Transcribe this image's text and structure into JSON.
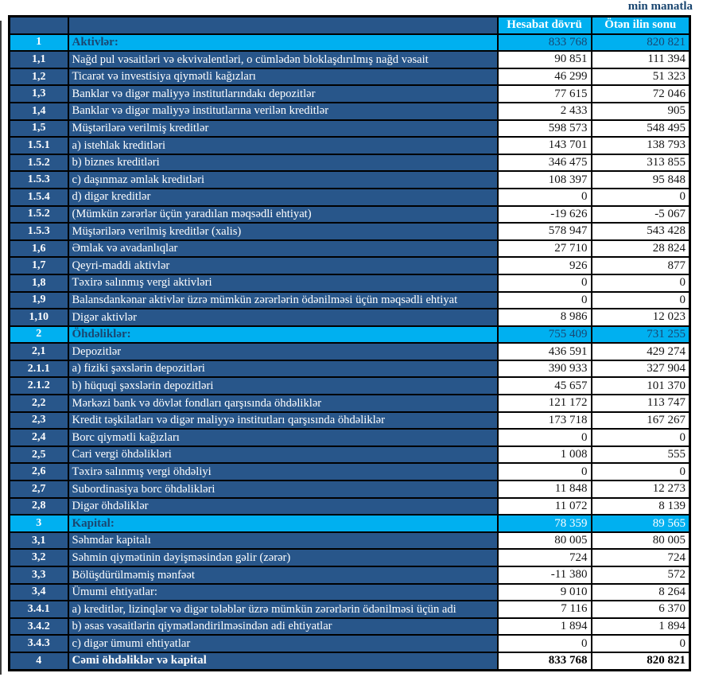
{
  "page": {
    "unit_note": "min manatla"
  },
  "colors": {
    "navy": "#28568A",
    "cyan": "#00B0F0",
    "section_text": "#1A4670",
    "value_text": "#141414",
    "border": "#000000"
  },
  "table": {
    "column_headers": {
      "current_period": "Hesabat dövrü",
      "previous_period": "Ötən ilin sonu"
    },
    "rows": [
      {
        "no": "1",
        "label": "Aktivlər:",
        "v1": "833 768",
        "v2": "820 821",
        "type": "section",
        "value_style": "dark"
      },
      {
        "no": "1,1",
        "label": "Nağd pul vəsaitləri və  ekvivalentləri, o cümlədən bloklaşdırılmış nağd vəsait",
        "v1": "90 851",
        "v2": "111 394",
        "type": "item"
      },
      {
        "no": "1,2",
        "label": "Ticarət və investisiya qiymətli kağızları",
        "v1": "46 299",
        "v2": "51 323",
        "type": "item"
      },
      {
        "no": "1,3",
        "label": "Banklar və digər maliyyə institutlarındakı depozitlər",
        "v1": "77 615",
        "v2": "72 046",
        "type": "item"
      },
      {
        "no": "1,4",
        "label": "Banklar və digər maliyyə institutlarına verilən kreditlər",
        "v1": "2 433",
        "v2": "905",
        "type": "item"
      },
      {
        "no": "1,5",
        "label": "Müştərilərə verilmiş kreditlər",
        "v1": "598 573",
        "v2": "548 495",
        "type": "item"
      },
      {
        "no": "1.5.1",
        "label": "a) istehlak kreditləri",
        "v1": "143 701",
        "v2": "138 793",
        "type": "item"
      },
      {
        "no": "1.5.2",
        "label": "b) biznes kreditləri",
        "v1": "346 475",
        "v2": "313 855",
        "type": "item"
      },
      {
        "no": "1.5.3",
        "label": "c) daşınmaz əmlak kreditləri",
        "v1": "108 397",
        "v2": "95 848",
        "type": "item"
      },
      {
        "no": "1.5.4",
        "label": "d) digər kreditlər",
        "v1": "0",
        "v2": "0",
        "type": "item"
      },
      {
        "no": "1.5.2",
        "label": "(Mümkün zərərlər üçün yaradılan məqsədli ehtiyat)",
        "v1": "-19 626",
        "v2": "-5 067",
        "type": "item"
      },
      {
        "no": "1.5.3",
        "label": "Müştərilərə verilmiş kreditlər (xalis)",
        "v1": "578 947",
        "v2": "543 428",
        "type": "item"
      },
      {
        "no": "1,6",
        "label": "Əmlak və avadanlıqlar",
        "v1": "27 710",
        "v2": "28 824",
        "type": "item"
      },
      {
        "no": "1,7",
        "label": "Qeyri-maddi aktivlər",
        "v1": "926",
        "v2": "877",
        "type": "item"
      },
      {
        "no": "1,8",
        "label": "Təxirə salınmış vergi aktivləri",
        "v1": "0",
        "v2": "0",
        "type": "item"
      },
      {
        "no": "1,9",
        "label": "Balansdankənar aktivlər üzrə mümkün zərərlərin ödənilməsi üçün məqsədli ehtiyat",
        "v1": "0",
        "v2": "0",
        "type": "item"
      },
      {
        "no": "1,10",
        "label": "Digər aktivlər",
        "v1": "8 986",
        "v2": "12 023",
        "type": "item"
      },
      {
        "no": "2",
        "label": "Öhdəliklər:",
        "v1": "755 409",
        "v2": "731 255",
        "type": "section",
        "value_style": "dark"
      },
      {
        "no": "2,1",
        "label": "Depozitlər",
        "v1": "436 591",
        "v2": "429 274",
        "type": "item"
      },
      {
        "no": "2.1.1",
        "label": "a) fiziki şəxslərin depozitləri",
        "v1": "390 933",
        "v2": "327 904",
        "type": "item"
      },
      {
        "no": "2.1.2",
        "label": "b) hüquqi şəxslərin depozitləri",
        "v1": "45 657",
        "v2": "101 370",
        "type": "item"
      },
      {
        "no": "2,2",
        "label": "Mərkəzi bank və dövlət fondları qarşısında öhdəliklər",
        "v1": "121 172",
        "v2": "113 747",
        "type": "item"
      },
      {
        "no": "2,3",
        "label": "Kredit təşkilatları və digər maliyyə institutları qarşısında öhdəliklər",
        "v1": "173 718",
        "v2": "167 267",
        "type": "item"
      },
      {
        "no": "2,4",
        "label": "Borc qiymətli kağızları",
        "v1": "0",
        "v2": "0",
        "type": "item"
      },
      {
        "no": "2,5",
        "label": "Cari vergi öhdəlikləri",
        "v1": "1 008",
        "v2": "555",
        "type": "item"
      },
      {
        "no": "2,6",
        "label": "Təxirə salınmış vergi öhdəliyi",
        "v1": "0",
        "v2": "0",
        "type": "item"
      },
      {
        "no": "2,7",
        "label": "Subordinasiya borc öhdəlikləri",
        "v1": "11 848",
        "v2": "12 273",
        "type": "item"
      },
      {
        "no": "2,8",
        "label": "Digər öhdəliklər",
        "v1": "11 072",
        "v2": "8 139",
        "type": "item"
      },
      {
        "no": "3",
        "label": "Kapital:",
        "v1": "78 359",
        "v2": "89 565",
        "type": "section",
        "value_style": "light"
      },
      {
        "no": "3,1",
        "label": "Səhmdar kapitalı",
        "v1": "80 005",
        "v2": "80 005",
        "type": "item"
      },
      {
        "no": "3,2",
        "label": "Səhmin qiymətinin dəyişməsindən gəlir (zərər)",
        "v1": "724",
        "v2": "724",
        "type": "item"
      },
      {
        "no": "3,3",
        "label": "Bölüşdürülməmiş mənfəət",
        "v1": "-11 380",
        "v2": "572",
        "type": "item"
      },
      {
        "no": "3,4",
        "label": "Ümumi ehtiyatlar:",
        "v1": "9 010",
        "v2": "8 264",
        "type": "item"
      },
      {
        "no": "3.4.1",
        "label": "a) kreditlər, lizinqlər və digər tələblər üzrə mümkün zərərlərin ödənilməsi üçün adi",
        "v1": "7 116",
        "v2": "6 370",
        "type": "item"
      },
      {
        "no": "3.4.2",
        "label": "b) əsas vəsaitlərin qiymətləndirilməsindən adi ehtiyatlar",
        "v1": "1 894",
        "v2": "1 894",
        "type": "item"
      },
      {
        "no": "3.4.3",
        "label": "c) digər ümumi ehtiyatlar",
        "v1": "0",
        "v2": "0",
        "type": "item"
      },
      {
        "no": "4",
        "label": "Cəmi öhdəliklər və kapital",
        "v1": "833 768",
        "v2": "820 821",
        "type": "total"
      }
    ]
  }
}
